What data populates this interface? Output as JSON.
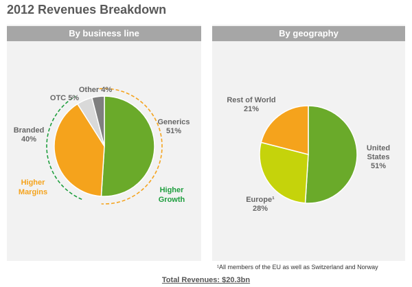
{
  "title": "2012 Revenues Breakdown",
  "chart_data": [
    {
      "type": "pie",
      "title": "By business line",
      "categories": [
        "Generics",
        "Branded",
        "OTC",
        "Other"
      ],
      "values": [
        51,
        40,
        5,
        4
      ],
      "value_labels": [
        "51%",
        "40%",
        "5%",
        "4%"
      ],
      "colors": [
        "#6aaa2a",
        "#f5a31c",
        "#d9d9d9",
        "#7f7f7f"
      ],
      "annotations": [
        {
          "text": "Higher Margins",
          "color": "#f5a31c"
        },
        {
          "text": "Higher Growth",
          "color": "#1e9e3e"
        }
      ]
    },
    {
      "type": "pie",
      "title": "By geography",
      "categories": [
        "United States",
        "Europe¹",
        "Rest of World"
      ],
      "values": [
        51,
        28,
        21
      ],
      "value_labels": [
        "51%",
        "28%",
        "21%"
      ],
      "colors": [
        "#6aaa2a",
        "#c5d30b",
        "#f5a31c"
      ]
    }
  ],
  "footnote": "¹All members of the EU as well as Switzerland and Norway",
  "total": "Total Revenues:  $20.3bn"
}
